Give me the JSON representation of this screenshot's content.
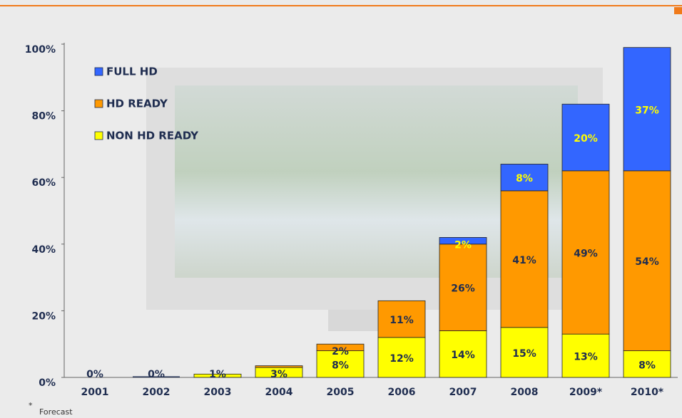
{
  "chart_data": {
    "type": "stacked-bar",
    "categories": [
      "2001",
      "2002",
      "2003",
      "2004",
      "2005",
      "2006",
      "2007",
      "2008",
      "2009*",
      "2010*"
    ],
    "series": [
      {
        "name": "NON HD READY",
        "color": "#ffff00",
        "label_color": "#1f2d50",
        "values": [
          0,
          0,
          1,
          3,
          8,
          12,
          14,
          15,
          13,
          8
        ],
        "value_labels": [
          "0%",
          "0%",
          "1%",
          "3%",
          "8%",
          "12%",
          "14%",
          "15%",
          "13%",
          "8%"
        ]
      },
      {
        "name": "HD READY",
        "color": "#ff9900",
        "label_color": "#1f2d50",
        "values": [
          0,
          0,
          0,
          0.5,
          2,
          11,
          26,
          41,
          49,
          54
        ],
        "value_labels": [
          null,
          null,
          null,
          null,
          "2%",
          "11%",
          "26%",
          "41%",
          "49%",
          "54%"
        ]
      },
      {
        "name": "FULL HD",
        "color": "#3366ff",
        "label_color": "#ffff00",
        "values": [
          0,
          0,
          0,
          0,
          0,
          0,
          2,
          8,
          20,
          37
        ],
        "value_labels": [
          null,
          null,
          null,
          null,
          null,
          null,
          "2%",
          "8%",
          "20%",
          "37%"
        ]
      }
    ],
    "ylim": [
      0,
      100
    ],
    "yticks": [
      {
        "value": 0,
        "label": "0%"
      },
      {
        "value": 20,
        "label": "20%"
      },
      {
        "value": 40,
        "label": "40%"
      },
      {
        "value": 60,
        "label": "60%"
      },
      {
        "value": 80,
        "label": "80%"
      },
      {
        "value": 100,
        "label": "100%"
      }
    ],
    "grid": false,
    "legend": "upper-left",
    "footnote": {
      "marker": "*",
      "text": "Forecast"
    }
  }
}
